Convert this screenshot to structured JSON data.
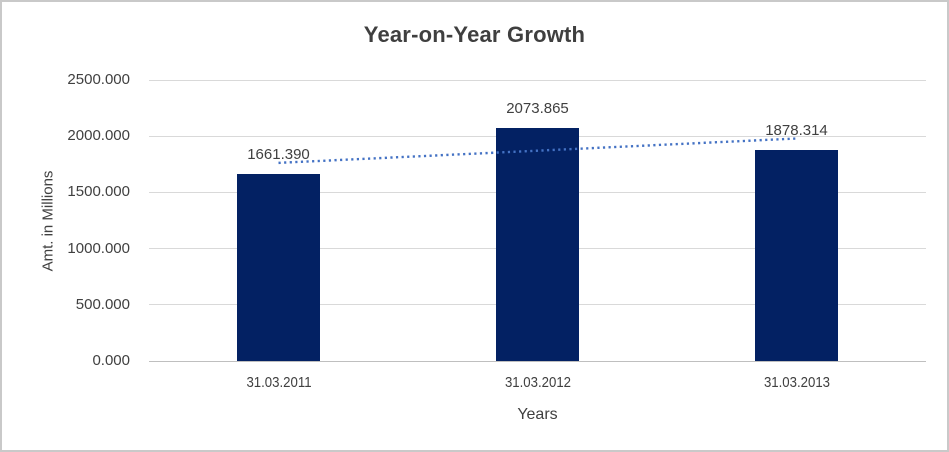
{
  "window": {
    "background": "#ffffff",
    "frame_border_color": "#c9c9c9"
  },
  "chart_data": {
    "type": "bar",
    "title": "Year-on-Year Growth",
    "categories": [
      "31.03.2011",
      "31.03.2012",
      "31.03.2013"
    ],
    "values": [
      1661.39,
      2073.865,
      1878.314
    ],
    "data_labels": [
      "1661.390",
      "2073.865",
      "1878.314"
    ],
    "xlabel": "Years",
    "ylabel": "Amt. in Millions",
    "ylim": [
      0,
      2500
    ],
    "ytick_step": 500,
    "ytick_labels": [
      "0.000",
      "500.000",
      "1000.000",
      "1500.000",
      "2000.000",
      "2500.000"
    ],
    "grid": true,
    "legend": "none",
    "trendline": {
      "type": "linear",
      "style": "dotted",
      "color": "#4472C4"
    },
    "colors": {
      "bar": "#032163",
      "gridline": "#d9d9d9",
      "axis_line": "#bfbfbf",
      "text": "#404040",
      "title": "#3f3f3f"
    }
  }
}
